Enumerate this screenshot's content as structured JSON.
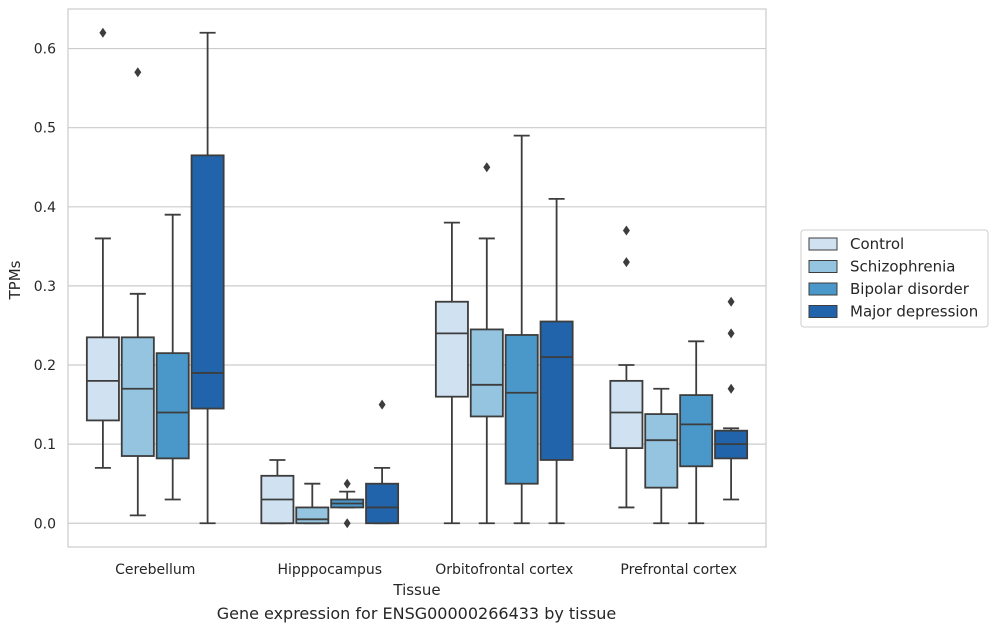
{
  "chart_data": {
    "type": "box",
    "categories": [
      "Cerebellum",
      "Hipppocampus",
      "Orbitofrontal cortex",
      "Prefrontal cortex"
    ],
    "xlabel": "Tissue",
    "ylabel": "TPMs",
    "ylim": [
      -0.03,
      0.65
    ],
    "yticks": [
      "0.0",
      "0.1",
      "0.2",
      "0.3",
      "0.4",
      "0.5",
      "0.6"
    ],
    "grid": true,
    "legend_position": "right",
    "series": [
      {
        "name": "Control",
        "color": "#d0e1f2",
        "boxes": [
          {
            "min": 0.07,
            "q1": 0.13,
            "median": 0.18,
            "q3": 0.235,
            "max": 0.36,
            "outliers": [
              0.62
            ]
          },
          {
            "min": 0.0,
            "q1": 0.0,
            "median": 0.03,
            "q3": 0.06,
            "max": 0.08,
            "outliers": []
          },
          {
            "min": 0.0,
            "q1": 0.16,
            "median": 0.24,
            "q3": 0.28,
            "max": 0.38,
            "outliers": []
          },
          {
            "min": 0.02,
            "q1": 0.095,
            "median": 0.14,
            "q3": 0.18,
            "max": 0.2,
            "outliers": [
              0.33,
              0.37
            ]
          }
        ]
      },
      {
        "name": "Schizophrenia",
        "color": "#94c4df",
        "boxes": [
          {
            "min": 0.01,
            "q1": 0.085,
            "median": 0.17,
            "q3": 0.235,
            "max": 0.29,
            "outliers": [
              0.57
            ]
          },
          {
            "min": 0.0,
            "q1": 0.0,
            "median": 0.005,
            "q3": 0.02,
            "max": 0.05,
            "outliers": []
          },
          {
            "min": 0.0,
            "q1": 0.135,
            "median": 0.175,
            "q3": 0.245,
            "max": 0.36,
            "outliers": [
              0.45
            ]
          },
          {
            "min": 0.0,
            "q1": 0.045,
            "median": 0.105,
            "q3": 0.138,
            "max": 0.17,
            "outliers": []
          }
        ]
      },
      {
        "name": "Bipolar disorder",
        "color": "#4a98c9",
        "boxes": [
          {
            "min": 0.03,
            "q1": 0.082,
            "median": 0.14,
            "q3": 0.215,
            "max": 0.39,
            "outliers": []
          },
          {
            "min": 0.02,
            "q1": 0.02,
            "median": 0.025,
            "q3": 0.03,
            "max": 0.04,
            "outliers": [
              0.0,
              0.05
            ]
          },
          {
            "min": 0.0,
            "q1": 0.05,
            "median": 0.165,
            "q3": 0.238,
            "max": 0.49,
            "outliers": []
          },
          {
            "min": 0.0,
            "q1": 0.072,
            "median": 0.125,
            "q3": 0.162,
            "max": 0.23,
            "outliers": []
          }
        ]
      },
      {
        "name": "Major depression",
        "color": "#2164ab",
        "boxes": [
          {
            "min": 0.0,
            "q1": 0.145,
            "median": 0.19,
            "q3": 0.465,
            "max": 0.62,
            "outliers": []
          },
          {
            "min": 0.0,
            "q1": 0.0,
            "median": 0.02,
            "q3": 0.05,
            "max": 0.07,
            "outliers": [
              0.15
            ]
          },
          {
            "min": 0.0,
            "q1": 0.08,
            "median": 0.21,
            "q3": 0.255,
            "max": 0.41,
            "outliers": []
          },
          {
            "min": 0.03,
            "q1": 0.082,
            "median": 0.1,
            "q3": 0.117,
            "max": 0.12,
            "outliers": [
              0.17,
              0.24,
              0.28
            ]
          }
        ]
      }
    ]
  },
  "caption": "Gene expression for ENSG00000266433 by tissue"
}
